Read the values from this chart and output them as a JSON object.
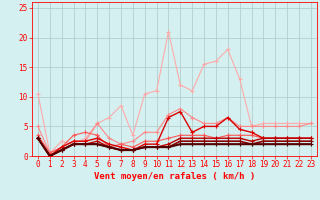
{
  "xlabel": "Vent moyen/en rafales ( km/h )",
  "x": [
    0,
    1,
    2,
    3,
    4,
    5,
    6,
    7,
    8,
    9,
    10,
    11,
    12,
    13,
    14,
    15,
    16,
    17,
    18,
    19,
    20,
    21,
    22,
    23
  ],
  "series": [
    {
      "color": "#ffaaaa",
      "linewidth": 0.8,
      "marker": "+",
      "markersize": 3,
      "markeredgewidth": 0.8,
      "data": [
        10.5,
        0.5,
        2.5,
        2.0,
        3.0,
        5.5,
        6.5,
        8.5,
        3.5,
        10.5,
        11.0,
        21.0,
        12.0,
        11.0,
        15.5,
        16.0,
        18.0,
        13.0,
        5.0,
        5.5,
        5.5,
        5.5,
        5.5,
        5.5
      ]
    },
    {
      "color": "#ff8888",
      "linewidth": 0.8,
      "marker": "+",
      "markersize": 3,
      "markeredgewidth": 0.8,
      "data": [
        5.0,
        0.5,
        1.5,
        2.5,
        2.5,
        5.5,
        3.0,
        2.0,
        2.5,
        4.0,
        4.0,
        7.0,
        8.0,
        6.5,
        5.5,
        5.5,
        6.5,
        5.0,
        5.0,
        5.0,
        5.0,
        5.0,
        5.0,
        5.5
      ]
    },
    {
      "color": "#ff5555",
      "linewidth": 0.8,
      "marker": "+",
      "markersize": 3,
      "markeredgewidth": 0.8,
      "data": [
        3.5,
        0.5,
        1.5,
        3.5,
        4.0,
        3.5,
        1.5,
        2.0,
        1.5,
        2.5,
        2.5,
        3.0,
        3.5,
        3.5,
        3.5,
        3.0,
        3.5,
        3.5,
        3.5,
        3.0,
        3.0,
        3.0,
        3.0,
        3.0
      ]
    },
    {
      "color": "#dd0000",
      "linewidth": 1.0,
      "marker": "+",
      "markersize": 3,
      "markeredgewidth": 0.8,
      "data": [
        3.0,
        0.0,
        1.5,
        2.5,
        2.5,
        3.0,
        2.0,
        1.5,
        1.0,
        2.0,
        2.0,
        6.5,
        7.5,
        4.0,
        5.0,
        5.0,
        6.5,
        4.5,
        4.0,
        3.0,
        3.0,
        3.0,
        3.0,
        3.0
      ]
    },
    {
      "color": "#bb0000",
      "linewidth": 1.0,
      "marker": "+",
      "markersize": 3,
      "markeredgewidth": 0.8,
      "data": [
        3.0,
        0.0,
        1.0,
        2.0,
        2.0,
        2.5,
        1.5,
        1.0,
        1.0,
        1.5,
        1.5,
        2.0,
        3.0,
        3.0,
        3.0,
        3.0,
        3.0,
        3.0,
        2.5,
        3.0,
        3.0,
        3.0,
        3.0,
        3.0
      ]
    },
    {
      "color": "#880000",
      "linewidth": 1.2,
      "marker": "+",
      "markersize": 3,
      "markeredgewidth": 0.8,
      "data": [
        3.0,
        0.0,
        1.0,
        2.0,
        2.0,
        2.0,
        1.5,
        1.0,
        1.0,
        1.5,
        1.5,
        1.5,
        2.5,
        2.5,
        2.5,
        2.5,
        2.5,
        2.5,
        2.0,
        2.5,
        2.5,
        2.5,
        2.5,
        2.5
      ]
    },
    {
      "color": "#550000",
      "linewidth": 1.5,
      "marker": "+",
      "markersize": 3,
      "markeredgewidth": 0.8,
      "data": [
        3.0,
        0.0,
        1.0,
        2.0,
        2.0,
        2.0,
        1.5,
        1.0,
        1.0,
        1.5,
        1.5,
        1.5,
        2.0,
        2.0,
        2.0,
        2.0,
        2.0,
        2.0,
        2.0,
        2.0,
        2.0,
        2.0,
        2.0,
        2.0
      ]
    }
  ],
  "ylim": [
    0,
    26
  ],
  "yticks": [
    0,
    5,
    10,
    15,
    20,
    25
  ],
  "xlim": [
    -0.5,
    23.5
  ],
  "bg_color": "#d4f0f0",
  "grid_color": "#b0c8c8",
  "tick_color": "#ff0000",
  "label_color": "#ff0000",
  "axis_label_fontsize": 6.5,
  "tick_fontsize": 5.5
}
